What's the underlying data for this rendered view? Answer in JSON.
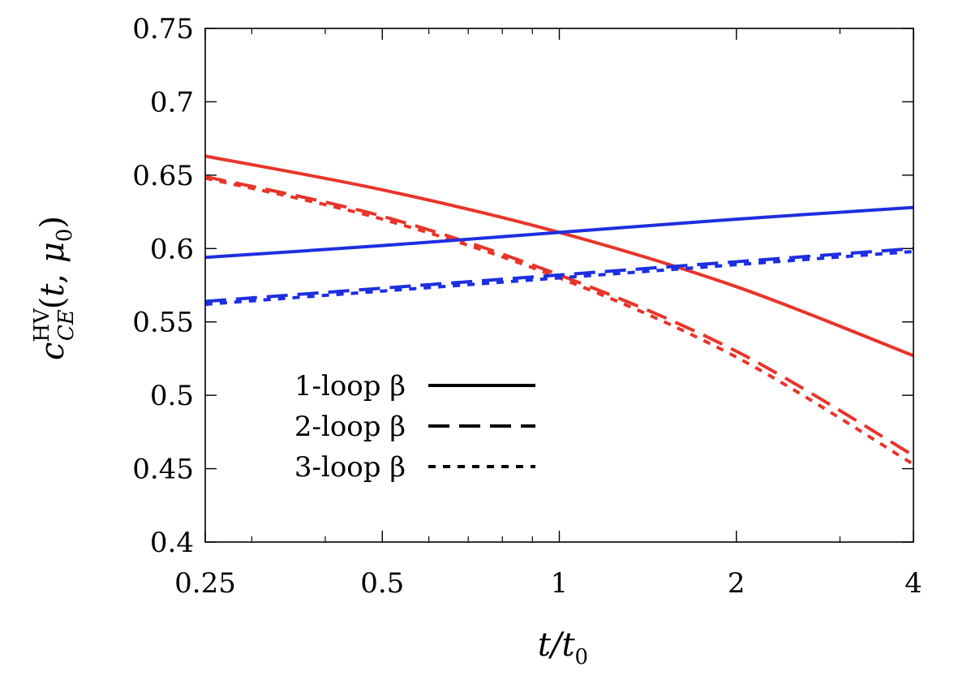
{
  "chart_data": {
    "type": "line",
    "title": "",
    "xlabel": "t/t0",
    "ylabel": "c_CE^HV(t, μ0)",
    "xscale": "log2",
    "xlim": [
      0.25,
      4
    ],
    "ylim": [
      0.4,
      0.75
    ],
    "xticks": [
      0.25,
      0.5,
      1,
      2,
      4
    ],
    "xtick_labels": [
      "0.25",
      "0.5",
      "1",
      "2",
      "4"
    ],
    "yticks": [
      0.4,
      0.45,
      0.5,
      0.55,
      0.6,
      0.65,
      0.7,
      0.75
    ],
    "ytick_labels": [
      "0.4",
      "0.45",
      "0.5",
      "0.55",
      "0.6",
      "0.65",
      "0.7",
      "0.75"
    ],
    "grid": false,
    "legend_position": "bottom-left",
    "x": [
      0.25,
      0.5,
      1,
      2,
      4
    ],
    "series": [
      {
        "name": "1-loop β (red)",
        "color": "#e8352a",
        "dash": "solid",
        "values": [
          0.663,
          0.64,
          0.611,
          0.574,
          0.527
        ]
      },
      {
        "name": "2-loop β (red)",
        "color": "#e8352a",
        "dash": "long",
        "values": [
          0.649,
          0.622,
          0.582,
          0.53,
          0.459
        ]
      },
      {
        "name": "3-loop β (red)",
        "color": "#e8352a",
        "dash": "short",
        "values": [
          0.648,
          0.62,
          0.58,
          0.526,
          0.453
        ]
      },
      {
        "name": "1-loop β (blue)",
        "color": "#1d2fe0",
        "dash": "solid",
        "values": [
          0.594,
          0.602,
          0.611,
          0.62,
          0.628
        ]
      },
      {
        "name": "2-loop β (blue)",
        "color": "#1d2fe0",
        "dash": "long",
        "values": [
          0.564,
          0.573,
          0.582,
          0.591,
          0.6
        ]
      },
      {
        "name": "3-loop β (blue)",
        "color": "#1d2fe0",
        "dash": "short",
        "values": [
          0.562,
          0.571,
          0.58,
          0.589,
          0.598
        ]
      }
    ],
    "legend": [
      {
        "label": "1-loop β",
        "dash": "solid"
      },
      {
        "label": "2-loop β",
        "dash": "long"
      },
      {
        "label": "3-loop β",
        "dash": "short"
      }
    ]
  }
}
